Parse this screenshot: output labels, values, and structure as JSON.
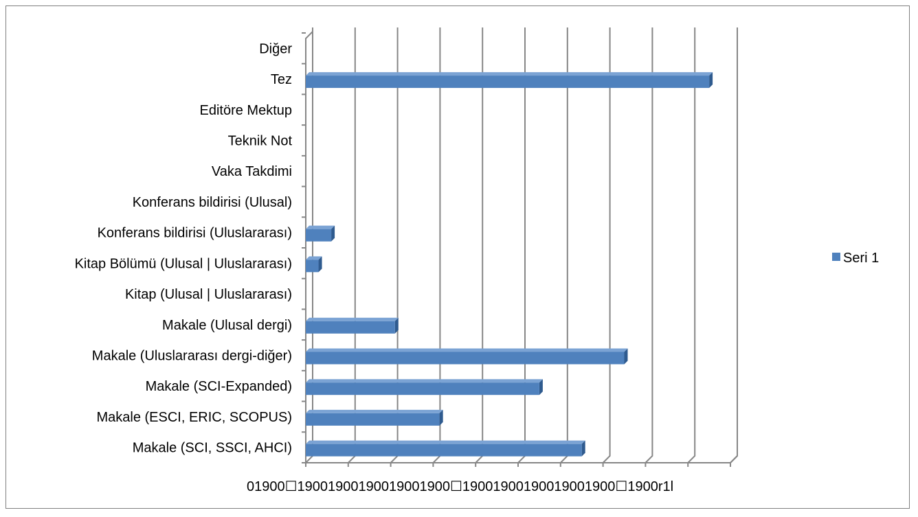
{
  "chart_data": {
    "type": "bar",
    "orientation": "horizontal",
    "style": "3d",
    "categories": [
      "Makale (SCI, SSCI, AHCI)",
      "Makale (ESCI, ERIC, SCOPUS)",
      "Makale (SCI-Expanded)",
      "Makale (Uluslararası dergi-diğer)",
      "Makale (Ulusal dergi)",
      "Kitap (Ulusal | Uluslararası)",
      "Kitap Bölümü (Ulusal | Uluslararası)",
      "Konferans bildirisi (Uluslararası)",
      "Konferans bildirisi (Ulusal)",
      "Vaka Takdimi",
      "Teknik Not",
      "Editöre Mektup",
      "Tez",
      "Diğer"
    ],
    "series": [
      {
        "name": "Seri 1",
        "values": [
          13,
          6.3,
          11,
          15,
          4.2,
          0,
          0.6,
          1.2,
          0,
          0,
          0,
          0,
          19,
          0
        ],
        "color": "#4f81bd"
      }
    ],
    "xlim": [
      0,
      20
    ],
    "x_tick_labels": [
      "0",
      "1900",
      "0",
      "1900",
      "1900",
      "1900",
      "1900",
      "1900",
      "0",
      "1900",
      "1900",
      "1900",
      "1900",
      "1900",
      "0",
      "1900",
      "r1l"
    ],
    "x_tick_text": "01900☐19001900190019001900☐19001900190019001900☐1900r1l",
    "grid": true,
    "legend_position": "right",
    "colors": {
      "bar_front": "#4f81bd",
      "bar_top": "#7ba3d4",
      "bar_side": "#2f5b8f",
      "grid": "#868686"
    }
  }
}
